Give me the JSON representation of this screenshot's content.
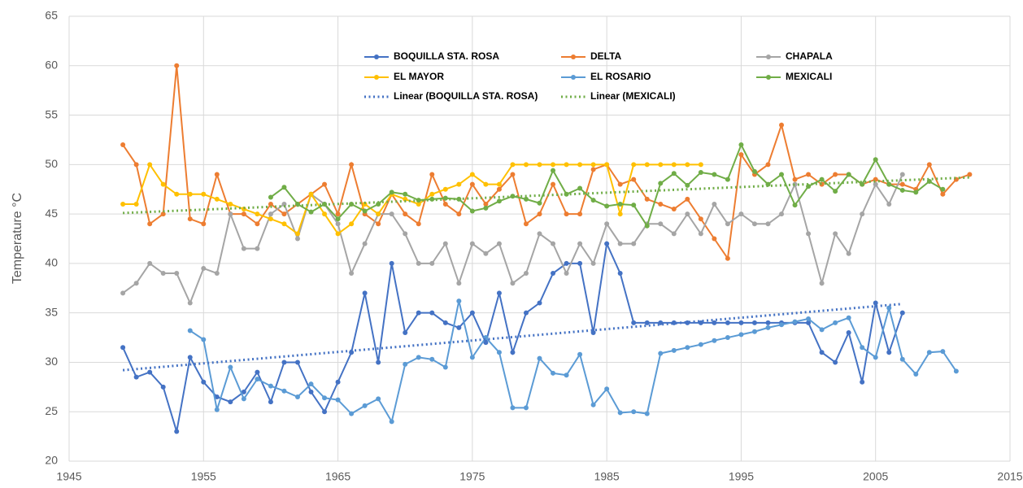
{
  "chart_data": {
    "type": "line",
    "y_label": "Temperature  °C",
    "x": [
      1949,
      1950,
      1951,
      1952,
      1953,
      1954,
      1955,
      1956,
      1957,
      1958,
      1959,
      1960,
      1961,
      1962,
      1963,
      1964,
      1965,
      1966,
      1967,
      1968,
      1969,
      1970,
      1971,
      1972,
      1973,
      1974,
      1975,
      1976,
      1977,
      1978,
      1979,
      1980,
      1981,
      1982,
      1983,
      1984,
      1985,
      1986,
      1987,
      1988,
      1989,
      1990,
      1991,
      1992,
      1993,
      1994,
      1995,
      1996,
      1997,
      1998,
      1999,
      2000,
      2001,
      2002,
      2003,
      2004,
      2005,
      2006,
      2007,
      2008,
      2009,
      2010,
      2011,
      2012
    ],
    "xlim": [
      1945,
      2015
    ],
    "xticks": [
      1945,
      1955,
      1965,
      1975,
      1985,
      1995,
      2005,
      2015
    ],
    "ylim": [
      20,
      65
    ],
    "yticks": [
      20,
      25,
      30,
      35,
      40,
      45,
      50,
      55,
      60,
      65
    ],
    "grid": true,
    "series": [
      {
        "name": "BOQUILLA STA. ROSA",
        "color": "#4472c4",
        "values": [
          31.5,
          28.5,
          29,
          27.5,
          23,
          30.5,
          28,
          26.5,
          26,
          27,
          29,
          26,
          30,
          30,
          27,
          25,
          28,
          31,
          37,
          30,
          40,
          33,
          35,
          35,
          34,
          33.5,
          35,
          32,
          37,
          31,
          35,
          36,
          39,
          40,
          40,
          33,
          42,
          39,
          34,
          34,
          34,
          34,
          34,
          34,
          34,
          34,
          34,
          34,
          34,
          34,
          34,
          34,
          31,
          30,
          33,
          28,
          36,
          31,
          35,
          null,
          null,
          null,
          null,
          null
        ]
      },
      {
        "name": "DELTA",
        "color": "#ed7d31",
        "values": [
          52,
          50,
          44,
          45,
          60,
          44.5,
          44,
          49,
          45,
          45,
          44,
          46,
          45,
          46,
          47,
          48,
          45,
          50,
          45,
          44,
          47,
          45,
          44,
          49,
          46,
          45,
          48,
          46,
          47.5,
          49,
          44,
          45,
          48,
          45,
          45,
          49.5,
          50,
          48,
          48.5,
          46.5,
          46,
          45.5,
          46.5,
          44.5,
          42.5,
          40.5,
          51,
          49,
          50,
          54,
          48.5,
          49,
          48,
          49,
          49,
          48,
          48.5,
          48,
          48,
          47.5,
          50,
          47,
          48.5,
          49
        ]
      },
      {
        "name": "CHAPALA",
        "color": "#a5a5a5",
        "values": [
          37,
          38,
          40,
          39,
          39,
          36,
          39.5,
          39,
          45,
          41.5,
          41.5,
          45,
          46,
          42.5,
          47,
          46,
          44,
          39,
          42,
          45,
          45,
          43,
          40,
          40,
          42,
          38,
          42,
          41,
          42,
          38,
          39,
          43,
          42,
          39,
          42,
          40,
          44,
          42,
          42,
          44,
          44,
          43,
          45,
          43,
          46,
          44,
          45,
          44,
          44,
          45,
          48,
          43,
          38,
          43,
          41,
          45,
          48,
          46,
          49,
          null,
          null,
          null,
          null,
          null
        ]
      },
      {
        "name": "EL MAYOR",
        "color": "#ffc000",
        "values": [
          46,
          46,
          50,
          48,
          47,
          47,
          47,
          46.5,
          46,
          45.5,
          45,
          44.5,
          44,
          43,
          47,
          45,
          43,
          44,
          46,
          45,
          47,
          46.5,
          46,
          47,
          47.5,
          48,
          49,
          48,
          48,
          50,
          50,
          50,
          50,
          50,
          50,
          50,
          50,
          45,
          50,
          50,
          50,
          50,
          50,
          50,
          null,
          null,
          null,
          null,
          null,
          null,
          null,
          null,
          null,
          null,
          null,
          null,
          null,
          null,
          null,
          null,
          null,
          null,
          null,
          null
        ]
      },
      {
        "name": "EL ROSARIO",
        "color": "#5b9bd5",
        "values": [
          null,
          null,
          null,
          null,
          null,
          33.2,
          32.3,
          25.2,
          29.5,
          26.3,
          28.3,
          27.6,
          27.1,
          26.5,
          27.8,
          26.4,
          26.2,
          24.8,
          25.6,
          26.3,
          24,
          29.8,
          30.5,
          30.3,
          29.5,
          36.2,
          30.5,
          32.5,
          31,
          25.4,
          25.4,
          30.4,
          28.9,
          28.7,
          30.8,
          25.7,
          27.3,
          24.9,
          25,
          24.8,
          30.9,
          31.2,
          31.5,
          31.8,
          32.2,
          32.5,
          32.8,
          33.1,
          33.5,
          33.8,
          34.1,
          34.4,
          33.3,
          34,
          34.5,
          31.5,
          30.5,
          35.5,
          30.3,
          28.8,
          31,
          31.1,
          29.1,
          null
        ]
      },
      {
        "name": "MEXICALI",
        "color": "#70ad47",
        "values": [
          null,
          null,
          null,
          null,
          null,
          null,
          null,
          null,
          null,
          null,
          null,
          46.7,
          47.7,
          46,
          45.2,
          46,
          44.5,
          46,
          45.3,
          46,
          47.2,
          47,
          46.4,
          46.5,
          46.6,
          46.5,
          45.3,
          45.6,
          46.3,
          46.8,
          46.5,
          46.1,
          49.4,
          47,
          47.6,
          46.4,
          45.8,
          46,
          45.9,
          43.8,
          48.1,
          49.1,
          47.9,
          49.2,
          49,
          48.5,
          52,
          49.3,
          48,
          49,
          45.9,
          47.8,
          48.5,
          47.3,
          49,
          48,
          50.5,
          48,
          47.4,
          47.2,
          48.3,
          47.5,
          null,
          null
        ]
      },
      {
        "name": "Linear (BOQUILLA STA. ROSA)",
        "color": "#4472c4",
        "dashed": true,
        "x": [
          1949,
          2007
        ],
        "values": [
          29.2,
          35.9
        ]
      },
      {
        "name": "Linear (MEXICALI)",
        "color": "#70ad47",
        "dashed": true,
        "x": [
          1949,
          2012
        ],
        "values": [
          45.1,
          48.7
        ]
      }
    ]
  }
}
